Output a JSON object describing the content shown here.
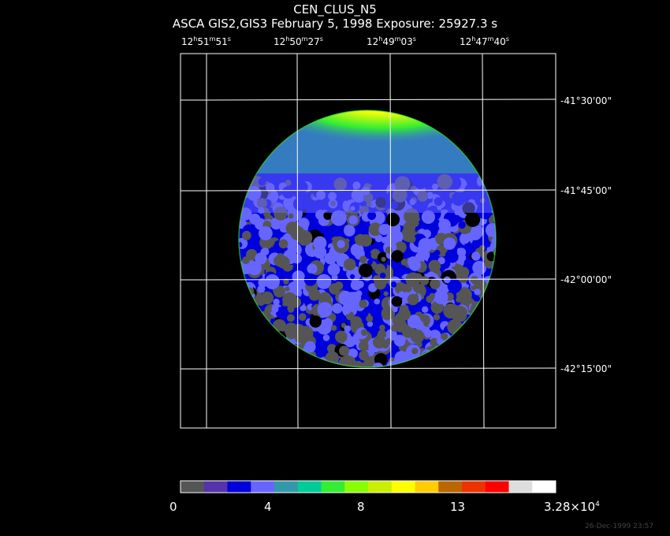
{
  "header": {
    "title": "CEN_CLUS_N5",
    "subtitle": "ASCA GIS2,GIS3 February 5, 1998 Exposure: 25927.3 s"
  },
  "axes": {
    "ra_ticks": [
      {
        "h": "12",
        "m": "51",
        "s": "51"
      },
      {
        "h": "12",
        "m": "50",
        "s": "27"
      },
      {
        "h": "12",
        "m": "49",
        "s": "03"
      },
      {
        "h": "12",
        "m": "47",
        "s": "40"
      }
    ],
    "dec_ticks": [
      "-41°30'00\"",
      "-41°45'00\"",
      "-42°00'00\"",
      "-42°15'00\""
    ]
  },
  "colorbar": {
    "labels": [
      "0",
      "4",
      "8",
      "13"
    ],
    "max_label_base": "3.28×10",
    "max_label_exp": "4",
    "colors": [
      "#555555",
      "#5533aa",
      "#0000dd",
      "#6666ff",
      "#3399aa",
      "#00cc99",
      "#33ee33",
      "#88ff00",
      "#ccee00",
      "#ffff00",
      "#ffcc00",
      "#bb6600",
      "#ee3300",
      "#ff0000",
      "#dddddd",
      "#ffffff"
    ]
  },
  "footer": {
    "timestamp": "26-Dec-1999 23:57"
  }
}
